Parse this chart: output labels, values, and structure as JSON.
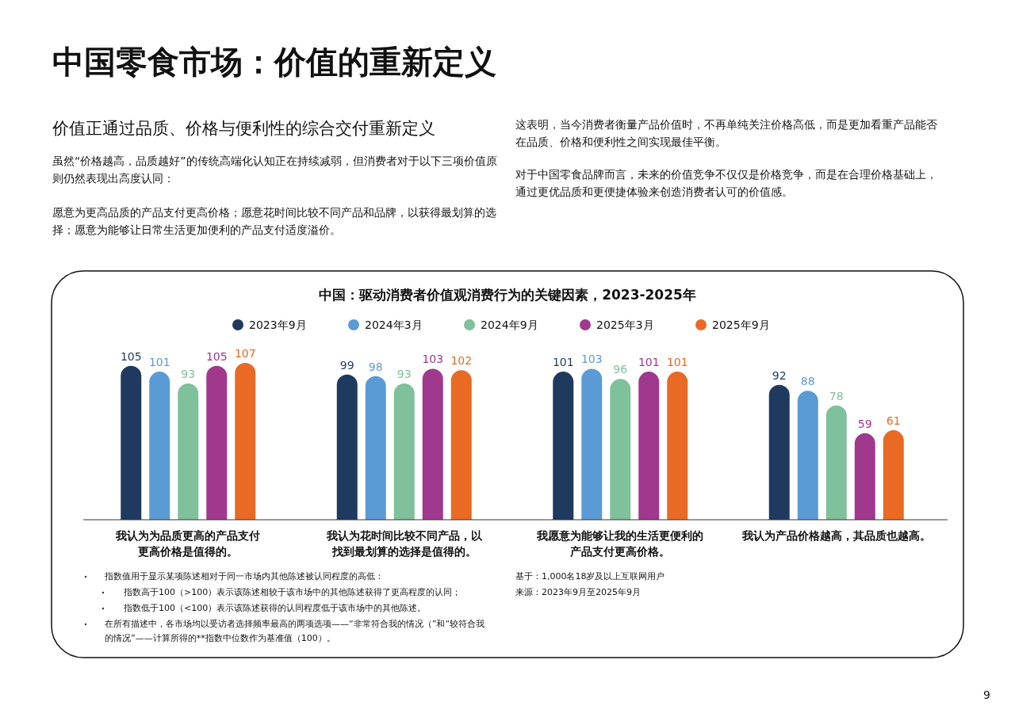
{
  "chart_data": {
    "type": "bar",
    "title": "中国：驱动消费者价值观消费行为的关键因素，2023-2025年",
    "categories": [
      "我认为为品质更高的产品支付更高价格是值得的。",
      "我认为花时间比较不同产品，以找到最划算的选择是值得的。",
      "我愿意为能够让我的生活更便利的产品支付更高价格。",
      "我认为产品价格越高，其品质也越高。"
    ],
    "series": [
      {
        "name": "2023年9月",
        "color": "#1f3a5f",
        "values": [
          105,
          99,
          101,
          92
        ]
      },
      {
        "name": "2024年3月",
        "color": "#5b9bd5",
        "values": [
          101,
          98,
          103,
          88
        ]
      },
      {
        "name": "2024年9月",
        "color": "#7fc19a",
        "values": [
          93,
          93,
          96,
          78
        ]
      },
      {
        "name": "2025年3月",
        "color": "#a0388e",
        "values": [
          105,
          103,
          101,
          59
        ]
      },
      {
        "name": "2025年9月",
        "color": "#e86a25",
        "values": [
          107,
          102,
          101,
          61
        ]
      }
    ],
    "data_labels": true,
    "legend": "top",
    "annotations": [
      "中国零食市场：价值的重新定义",
      "价值正通过品质、价格与便利性的综合交付重新定义",
      "虽然“价格越高，品质越好”的传统高端化认知正在持续减弱，但消费者对于以下三项价值原则仍然表现出高度认同：",
      "愿意为更高品质的产品支付更高价格；愿意花时间比较不同产品和品牌，以获得最划算的选择；愿意为能够让日常生活更加便利的产品支付适度溢价。",
      "这表明，当今消费者衡量产品价值时，不再单纯关注价格高低，而是更加看重产品能否在品质、价格和便利性之间实现最佳平衡。",
      "对于中国零食品牌而言，未来的价值竞争不仅仅是价格竞争，而是在合理价格基础上，通过更优品质和更便捷体验来创造消费者认可的价值感。",
      "指数值用于显示某项陈述相对于同一市场内其他陈述被认同程度的高低：",
      "指数高于100（>100）表示该陈述相较于该市场中的其他陈述获得了更高程度的认同；",
      "指数低于100（<100）表示该陈述获得的认同程度低于该市场中的其他陈述。",
      "在所有描述中，各市场均以受访者选择频率最高的两项选项——“非常符合我的情况（”和“较符合我的情况”——计算所得的**指数中位数作为基准值（100）。",
      "基于：1,000名18岁及以上互联网用户",
      "来源：2023年9月至2025年9月",
      "9"
    ]
  }
}
